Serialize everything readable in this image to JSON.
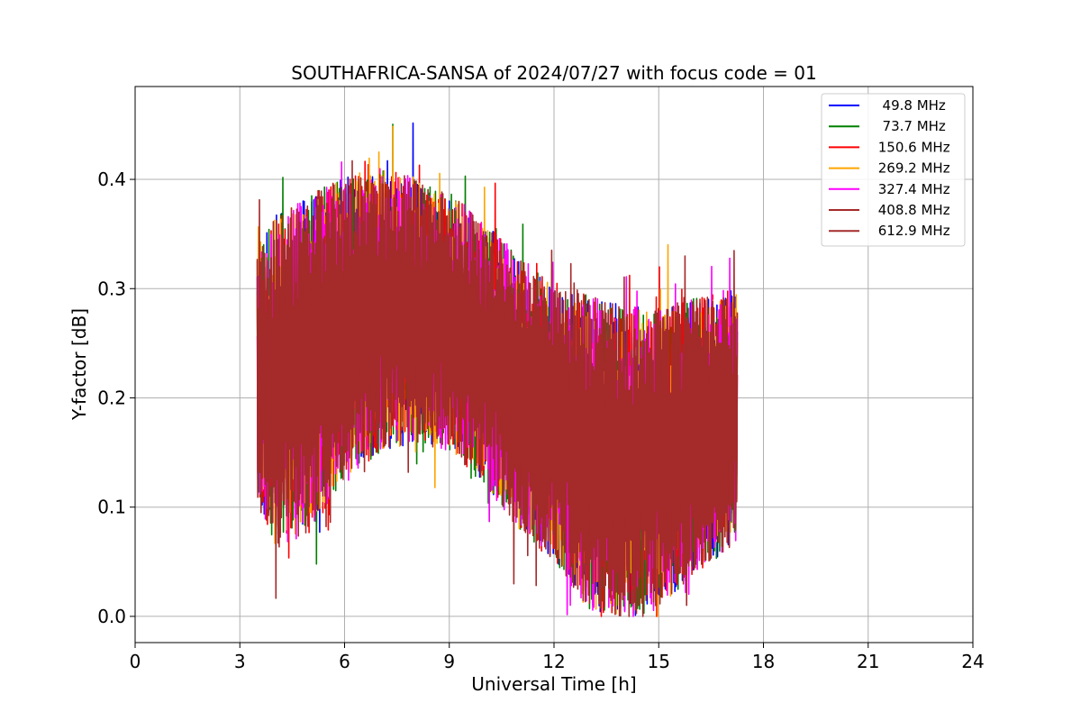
{
  "chart_data": {
    "type": "line",
    "title": "SOUTHAFRICA-SANSA of 2024/07/27 with focus code = 01",
    "xlabel": "Universal Time [h]",
    "ylabel": "Y-factor [dB]",
    "xlim": [
      0,
      24
    ],
    "ylim": [
      -0.024,
      0.485
    ],
    "x_ticks": [
      0,
      3,
      6,
      9,
      12,
      15,
      18,
      21,
      24
    ],
    "x_tick_labels": [
      "0",
      "3",
      "6",
      "9",
      "12",
      "15",
      "18",
      "21",
      "24"
    ],
    "y_ticks": [
      0.0,
      0.1,
      0.2,
      0.3,
      0.4
    ],
    "y_tick_labels": [
      "0.0",
      "0.1",
      "0.2",
      "0.3",
      "0.4"
    ],
    "grid": true,
    "legend_position": "top-right",
    "data_x_range": [
      3.5,
      17.25
    ],
    "envelope": {
      "x": [
        3.5,
        4.0,
        5.0,
        6.0,
        7.0,
        8.0,
        9.0,
        10.0,
        11.0,
        12.0,
        13.0,
        14.0,
        15.0,
        16.0,
        17.0,
        17.25
      ],
      "upper": [
        0.32,
        0.34,
        0.36,
        0.38,
        0.39,
        0.38,
        0.37,
        0.34,
        0.31,
        0.28,
        0.27,
        0.26,
        0.26,
        0.27,
        0.28,
        0.28
      ],
      "lower": [
        0.12,
        0.09,
        0.1,
        0.15,
        0.17,
        0.18,
        0.17,
        0.14,
        0.1,
        0.07,
        0.03,
        0.02,
        0.03,
        0.06,
        0.08,
        0.09
      ]
    },
    "series": [
      {
        "name": "  49.8 MHz",
        "color": "#0000ff"
      },
      {
        "name": "  73.7 MHz",
        "color": "#008000"
      },
      {
        "name": " 150.6 MHz",
        "color": "#ff0000"
      },
      {
        "name": " 269.2 MHz",
        "color": "#ffa500"
      },
      {
        "name": " 327.4 MHz",
        "color": "#ff00ff"
      },
      {
        "name": " 408.8 MHz",
        "color": "#a52a2a"
      },
      {
        "name": " 612.9 MHz",
        "color": "#a52a2a"
      }
    ]
  }
}
